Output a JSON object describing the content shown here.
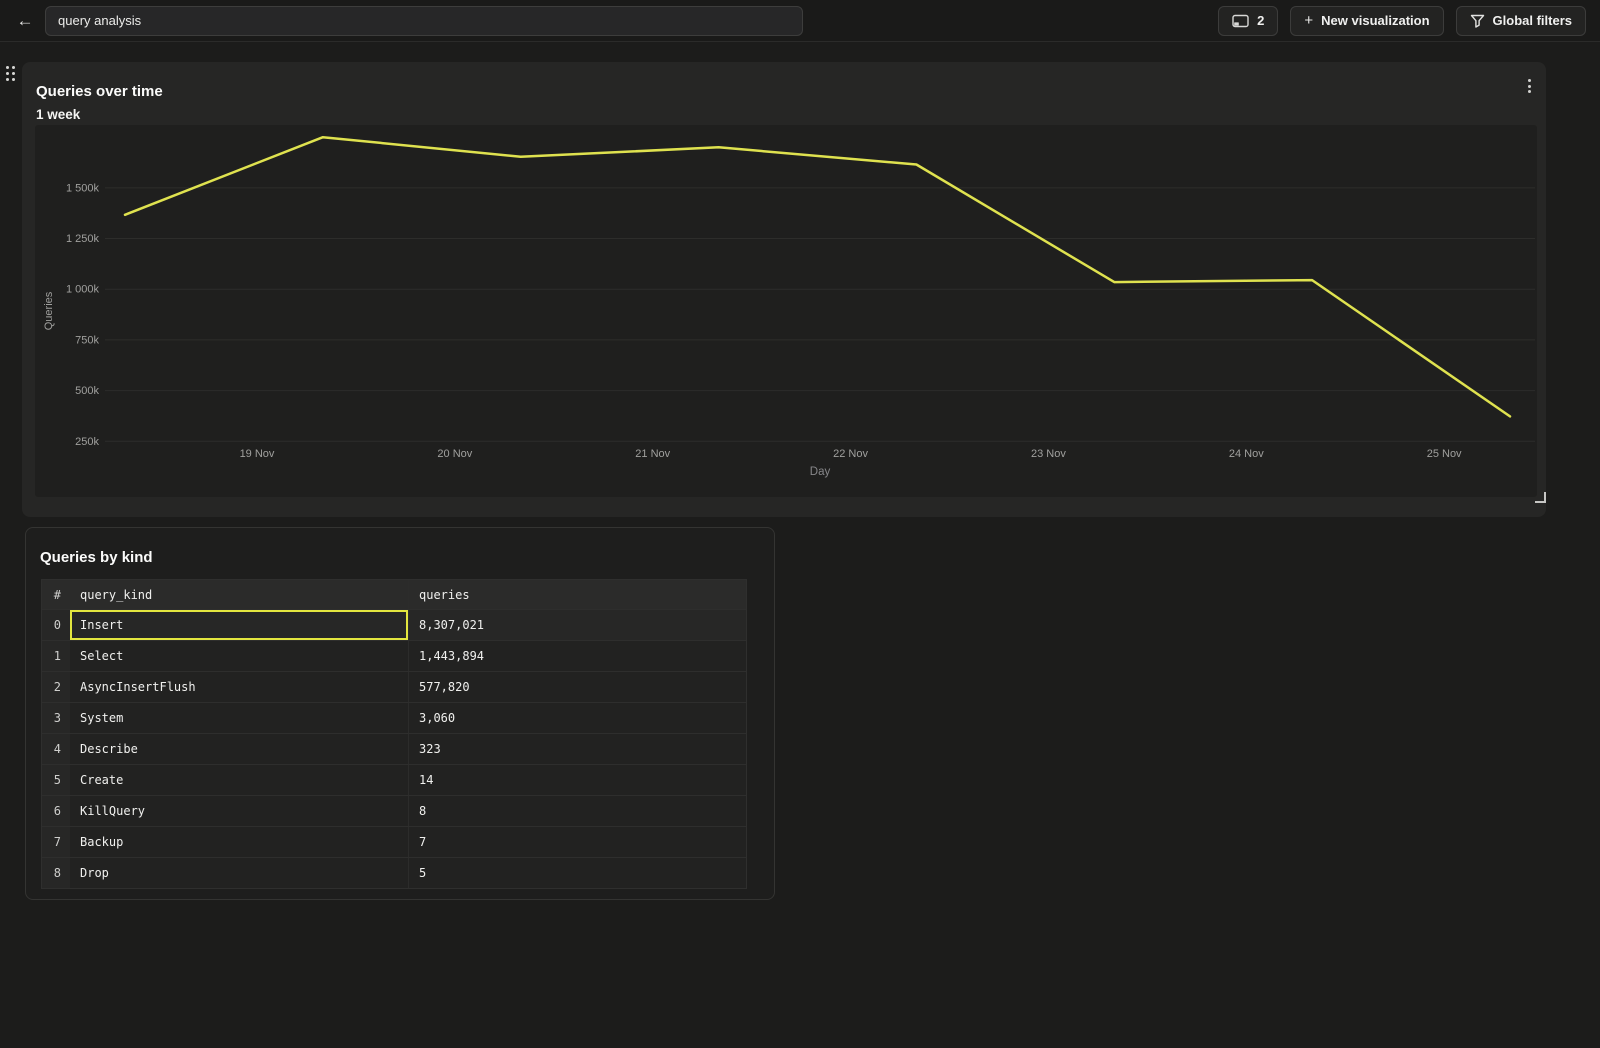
{
  "colors": {
    "page_bg": "#1c1c1b",
    "card_bg": "#262625",
    "plot_bg": "#1f1f1e",
    "gridline": "#2d2d2b",
    "tick_text": "#a0a09e",
    "axis_label_text": "#87878a",
    "line_yellow": "#dfe24f",
    "selection_yellow": "#e3e63f"
  },
  "header": {
    "back_icon": "←",
    "title_input": {
      "value": "query analysis"
    },
    "panels_button": {
      "icon": "console-icon",
      "count": "2"
    },
    "new_visualization_button": {
      "plus": "+",
      "label": "New visualization"
    },
    "global_filters_button": {
      "icon": "funnel-icon",
      "label": "Global filters"
    }
  },
  "chart_card": {
    "title": "Queries over time",
    "subtitle": "1 week",
    "menu_icon": "kebab-vertical"
  },
  "chart_data": {
    "type": "line",
    "title": "Queries over time",
    "subtitle": "1 week",
    "xlabel": "Day",
    "ylabel": "Queries",
    "x_ticks": [
      "19 Nov",
      "20 Nov",
      "21 Nov",
      "22 Nov",
      "23 Nov",
      "24 Nov",
      "25 Nov"
    ],
    "y_ticks": [
      {
        "label": "250k",
        "value_k": 250
      },
      {
        "label": "500k",
        "value_k": 500
      },
      {
        "label": "750k",
        "value_k": 750
      },
      {
        "label": "1 000k",
        "value_k": 1000
      },
      {
        "label": "1 250k",
        "value_k": 1250
      },
      {
        "label": "1 500k",
        "value_k": 1500
      }
    ],
    "ylim_k": [
      0,
      1810
    ],
    "grid": "horizontal",
    "legend": "none",
    "series": [
      {
        "name": "Queries",
        "color": "#dfe24f",
        "values_k": [
          1367,
          1750,
          1653,
          1700,
          1615,
          1035,
          1045,
          373
        ]
      }
    ]
  },
  "table_card": {
    "title": "Queries by kind",
    "columns": [
      "#",
      "query_kind",
      "queries"
    ],
    "rows": [
      {
        "index": "0",
        "query_kind": "Insert",
        "queries": "8,307,021"
      },
      {
        "index": "1",
        "query_kind": "Select",
        "queries": "1,443,894"
      },
      {
        "index": "2",
        "query_kind": "AsyncInsertFlush",
        "queries": "577,820"
      },
      {
        "index": "3",
        "query_kind": "System",
        "queries": "3,060"
      },
      {
        "index": "4",
        "query_kind": "Describe",
        "queries": "323"
      },
      {
        "index": "5",
        "query_kind": "Create",
        "queries": "14"
      },
      {
        "index": "6",
        "query_kind": "KillQuery",
        "queries": "8"
      },
      {
        "index": "7",
        "query_kind": "Backup",
        "queries": "7"
      },
      {
        "index": "8",
        "query_kind": "Drop",
        "queries": "5"
      }
    ],
    "selected_cell": {
      "row_index": 0,
      "column": "query_kind"
    }
  }
}
